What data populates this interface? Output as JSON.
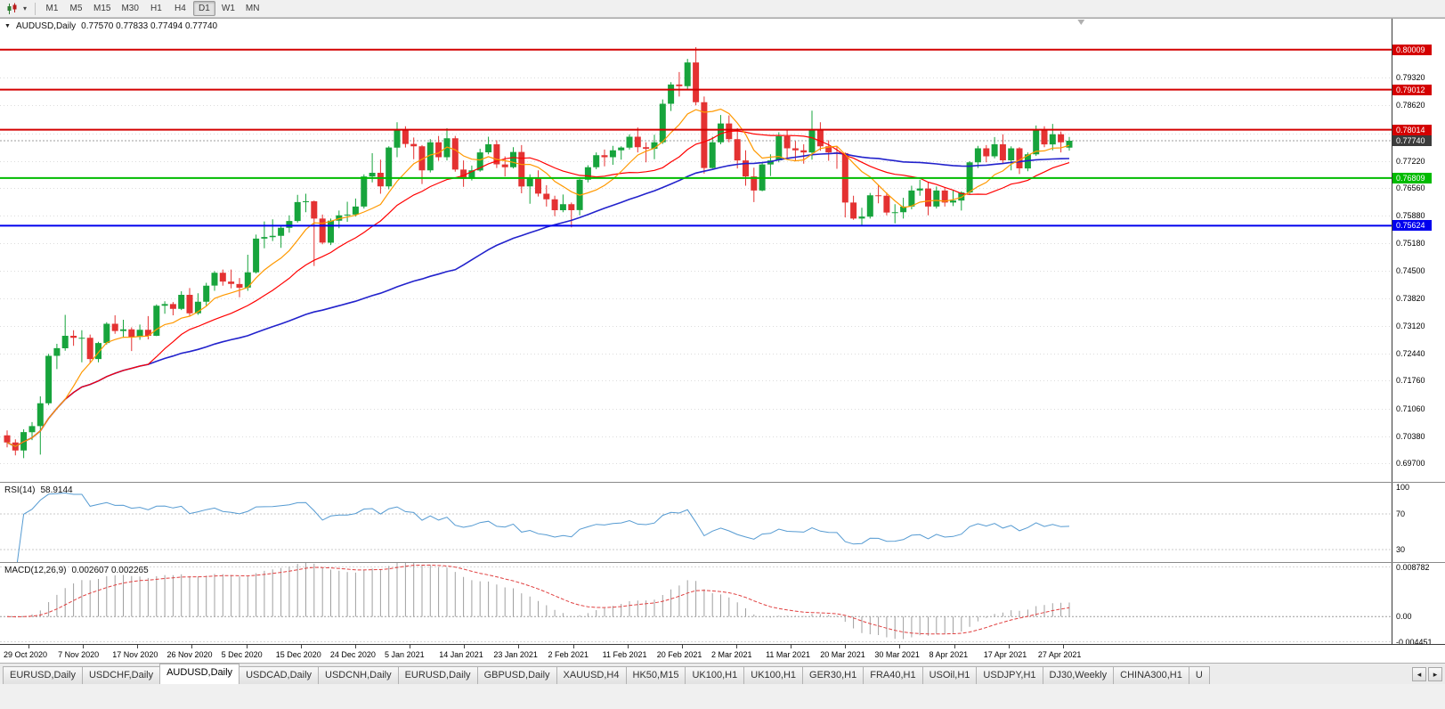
{
  "toolbar": {
    "dropdown_glyph": "▾",
    "timeframes": [
      "M1",
      "M5",
      "M15",
      "M30",
      "H1",
      "H4",
      "D1",
      "W1",
      "MN"
    ],
    "active_timeframe": "D1"
  },
  "chart": {
    "collapse_glyph": "▼",
    "title": "AUDUSD,Daily",
    "ohlc": "0.77570 0.77833 0.77494 0.77740"
  },
  "rsi_panel": {
    "label": "RSI(14)",
    "value": "58.9144"
  },
  "macd_panel": {
    "label": "MACD(12,26,9)",
    "values": "0.002607 0.002265"
  },
  "tabs": {
    "items": [
      "EURUSD,Daily",
      "USDCHF,Daily",
      "AUDUSD,Daily",
      "USDCAD,Daily",
      "USDCNH,Daily",
      "EURUSD,Daily",
      "GBPUSD,Daily",
      "XAUUSD,H4",
      "HK50,M15",
      "UK100,H1",
      "UK100,H1",
      "GER30,H1",
      "FRA40,H1",
      "USOil,H1",
      "USDJPY,H1",
      "DJ30,Weekly",
      "CHINA300,H1",
      "U"
    ],
    "active_index": 2,
    "scroll_left_icon": "◂",
    "scroll_right_icon": "▸"
  },
  "chart_data": {
    "type": "candlestick",
    "symbol": "AUDUSD",
    "period": "Daily",
    "current_ohlc": {
      "open": 0.7757,
      "high": 0.77833,
      "low": 0.77494,
      "close": 0.7774
    },
    "price_range": [
      0.6924,
      0.8078
    ],
    "y_labels": [
      "0.79320",
      "0.78620",
      "0.77920",
      "0.77220",
      "0.76560",
      "0.75880",
      "0.75180",
      "0.74500",
      "0.73820",
      "0.73120",
      "0.72440",
      "0.71760",
      "0.71060",
      "0.70380",
      "0.69700"
    ],
    "x_labels": [
      "29 Oct 2020",
      "7 Nov 2020",
      "17 Nov 2020",
      "26 Nov 2020",
      "5 Dec 2020",
      "15 Dec 2020",
      "24 Dec 2020",
      "5 Jan 2021",
      "14 Jan 2021",
      "23 Jan 2021",
      "2 Feb 2021",
      "11 Feb 2021",
      "20 Feb 2021",
      "2 Mar 2021",
      "11 Mar 2021",
      "20 Mar 2021",
      "30 Mar 2021",
      "8 Apr 2021",
      "17 Apr 2021",
      "27 Apr 2021"
    ],
    "colors": {
      "up": "#17A43C",
      "down": "#E43232"
    },
    "overlays": {
      "sma_fast": {
        "period": 8,
        "color": "#FF9900",
        "width": 1.2
      },
      "sma_mid": {
        "period": 18,
        "color": "#FF0000",
        "width": 1.2
      },
      "sma_slow": {
        "period": 55,
        "color": "#2222CC",
        "width": 1.6
      }
    },
    "hlines": [
      {
        "price": 0.80009,
        "color": "#D40000",
        "width": 2
      },
      {
        "price": 0.79012,
        "color": "#D40000",
        "width": 2
      },
      {
        "price": 0.78014,
        "color": "#D40000",
        "width": 2
      },
      {
        "price": 0.76809,
        "color": "#00BB00",
        "width": 2
      },
      {
        "price": 0.75624,
        "color": "#0000EE",
        "width": 2
      }
    ],
    "bid_line": 0.7774,
    "bid_tag_color": "#3C3C3C",
    "rsi": {
      "period": 14,
      "value": 58.9144,
      "color": "#569BD2",
      "range": [
        15,
        105
      ],
      "levels": [
        70,
        30
      ],
      "axis_labels": [
        "100",
        "70",
        "30"
      ]
    },
    "macd": {
      "fast": 12,
      "slow": 26,
      "signal": 9,
      "macd_value": 0.002607,
      "signal_value": 0.002265,
      "range": [
        -0.005,
        0.0095
      ],
      "axis_labels": [
        "0.008782",
        "0.00",
        "-0.004451"
      ],
      "hist_color": "#A0A0A0",
      "signal_color": "#E04040"
    },
    "candles": [
      [
        0.704,
        0.7052,
        0.701,
        0.7022
      ],
      [
        0.7022,
        0.703,
        0.699,
        0.7002
      ],
      [
        0.7002,
        0.7055,
        0.6983,
        0.7048
      ],
      [
        0.7048,
        0.7073,
        0.7028,
        0.7063
      ],
      [
        0.7063,
        0.7137,
        0.6992,
        0.712
      ],
      [
        0.712,
        0.7243,
        0.7115,
        0.7238
      ],
      [
        0.7238,
        0.7268,
        0.7205,
        0.7257
      ],
      [
        0.7257,
        0.734,
        0.7251,
        0.7288
      ],
      [
        0.7288,
        0.7302,
        0.7263,
        0.7283
      ],
      [
        0.7283,
        0.7302,
        0.7222,
        0.7283
      ],
      [
        0.7283,
        0.7291,
        0.7221,
        0.723
      ],
      [
        0.723,
        0.7273,
        0.7222,
        0.727
      ],
      [
        0.727,
        0.7322,
        0.7266,
        0.7318
      ],
      [
        0.7318,
        0.7339,
        0.7293,
        0.73
      ],
      [
        0.73,
        0.7328,
        0.7283,
        0.7304
      ],
      [
        0.7304,
        0.7309,
        0.725,
        0.7285
      ],
      [
        0.7285,
        0.7316,
        0.7278,
        0.7303
      ],
      [
        0.7303,
        0.7337,
        0.7279,
        0.7288
      ],
      [
        0.7288,
        0.7366,
        0.7287,
        0.7363
      ],
      [
        0.7363,
        0.7374,
        0.7343,
        0.7367
      ],
      [
        0.7367,
        0.7372,
        0.7339,
        0.7355
      ],
      [
        0.7355,
        0.7399,
        0.7352,
        0.739
      ],
      [
        0.739,
        0.7407,
        0.7338,
        0.7344
      ],
      [
        0.7344,
        0.7394,
        0.734,
        0.7373
      ],
      [
        0.7373,
        0.742,
        0.7363,
        0.7413
      ],
      [
        0.7413,
        0.7449,
        0.74,
        0.7445
      ],
      [
        0.7445,
        0.7453,
        0.7413,
        0.7423
      ],
      [
        0.7423,
        0.7453,
        0.7406,
        0.7417
      ],
      [
        0.7417,
        0.7432,
        0.7384,
        0.7408
      ],
      [
        0.7408,
        0.749,
        0.74,
        0.7446
      ],
      [
        0.7446,
        0.754,
        0.7443,
        0.753
      ],
      [
        0.753,
        0.7573,
        0.7506,
        0.7534
      ],
      [
        0.7534,
        0.7578,
        0.7524,
        0.7537
      ],
      [
        0.7537,
        0.7563,
        0.7507,
        0.7557
      ],
      [
        0.7557,
        0.7588,
        0.7545,
        0.7574
      ],
      [
        0.7574,
        0.7639,
        0.757,
        0.7621
      ],
      [
        0.7621,
        0.7642,
        0.7596,
        0.7623
      ],
      [
        0.7623,
        0.7625,
        0.7462,
        0.758
      ],
      [
        0.758,
        0.759,
        0.7516,
        0.752
      ],
      [
        0.752,
        0.758,
        0.7514,
        0.7575
      ],
      [
        0.7575,
        0.76,
        0.7556,
        0.7588
      ],
      [
        0.7588,
        0.7622,
        0.7572,
        0.759
      ],
      [
        0.759,
        0.763,
        0.7585,
        0.761
      ],
      [
        0.761,
        0.769,
        0.7605,
        0.7685
      ],
      [
        0.7685,
        0.7743,
        0.767,
        0.7694
      ],
      [
        0.7694,
        0.7727,
        0.7642,
        0.766
      ],
      [
        0.766,
        0.776,
        0.7653,
        0.7757
      ],
      [
        0.7757,
        0.782,
        0.7733,
        0.78
      ],
      [
        0.78,
        0.781,
        0.7757,
        0.7766
      ],
      [
        0.7766,
        0.7782,
        0.7728,
        0.776
      ],
      [
        0.776,
        0.7763,
        0.7666,
        0.77
      ],
      [
        0.77,
        0.7778,
        0.7695,
        0.777
      ],
      [
        0.777,
        0.7786,
        0.7724,
        0.7733
      ],
      [
        0.7733,
        0.7805,
        0.7725,
        0.778
      ],
      [
        0.778,
        0.7786,
        0.7697,
        0.7702
      ],
      [
        0.7702,
        0.7725,
        0.7659,
        0.7679
      ],
      [
        0.7679,
        0.7712,
        0.7675,
        0.77
      ],
      [
        0.77,
        0.7754,
        0.7697,
        0.7745
      ],
      [
        0.7745,
        0.7784,
        0.774,
        0.7765
      ],
      [
        0.7765,
        0.7775,
        0.7706,
        0.7715
      ],
      [
        0.7715,
        0.7735,
        0.7685,
        0.7708
      ],
      [
        0.7708,
        0.7758,
        0.7705,
        0.7746
      ],
      [
        0.7746,
        0.7763,
        0.7643,
        0.766
      ],
      [
        0.766,
        0.769,
        0.7617,
        0.768
      ],
      [
        0.768,
        0.77,
        0.7635,
        0.7642
      ],
      [
        0.7642,
        0.7663,
        0.761,
        0.7628
      ],
      [
        0.7628,
        0.7637,
        0.7586,
        0.7601
      ],
      [
        0.7601,
        0.764,
        0.7596,
        0.7616
      ],
      [
        0.7616,
        0.762,
        0.7558,
        0.7601
      ],
      [
        0.7601,
        0.7679,
        0.7588,
        0.7677
      ],
      [
        0.7677,
        0.7713,
        0.767,
        0.7708
      ],
      [
        0.7708,
        0.7745,
        0.7703,
        0.7738
      ],
      [
        0.7738,
        0.7752,
        0.771,
        0.7733
      ],
      [
        0.7733,
        0.7761,
        0.7714,
        0.775
      ],
      [
        0.775,
        0.776,
        0.7727,
        0.7757
      ],
      [
        0.7757,
        0.779,
        0.7752,
        0.7784
      ],
      [
        0.7784,
        0.7807,
        0.7745,
        0.7758
      ],
      [
        0.7758,
        0.777,
        0.772,
        0.7754
      ],
      [
        0.7754,
        0.7789,
        0.7728,
        0.777
      ],
      [
        0.777,
        0.7877,
        0.7766,
        0.7866
      ],
      [
        0.7866,
        0.792,
        0.7848,
        0.7914
      ],
      [
        0.7914,
        0.7945,
        0.7884,
        0.791
      ],
      [
        0.791,
        0.7978,
        0.79,
        0.7969
      ],
      [
        0.7969,
        0.8007,
        0.7862,
        0.787
      ],
      [
        0.787,
        0.7884,
        0.7692,
        0.7706
      ],
      [
        0.7706,
        0.7784,
        0.7705,
        0.777
      ],
      [
        0.777,
        0.7838,
        0.7765,
        0.7817
      ],
      [
        0.7817,
        0.7837,
        0.777,
        0.7778
      ],
      [
        0.7778,
        0.7805,
        0.7705,
        0.7725
      ],
      [
        0.7725,
        0.775,
        0.7662,
        0.7685
      ],
      [
        0.7685,
        0.7707,
        0.7621,
        0.765
      ],
      [
        0.765,
        0.772,
        0.7648,
        0.7715
      ],
      [
        0.7715,
        0.774,
        0.7686,
        0.7725
      ],
      [
        0.7725,
        0.7795,
        0.772,
        0.7785
      ],
      [
        0.7785,
        0.78,
        0.773,
        0.7755
      ],
      [
        0.7755,
        0.7773,
        0.7725,
        0.775
      ],
      [
        0.775,
        0.7765,
        0.7717,
        0.7745
      ],
      [
        0.7745,
        0.7849,
        0.7727,
        0.78
      ],
      [
        0.78,
        0.782,
        0.7749,
        0.776
      ],
      [
        0.776,
        0.7775,
        0.7724,
        0.7745
      ],
      [
        0.7745,
        0.776,
        0.7704,
        0.7743
      ],
      [
        0.7743,
        0.7745,
        0.7583,
        0.762
      ],
      [
        0.762,
        0.7637,
        0.7577,
        0.758
      ],
      [
        0.758,
        0.7607,
        0.7562,
        0.7585
      ],
      [
        0.7585,
        0.7644,
        0.758,
        0.7638
      ],
      [
        0.7638,
        0.7664,
        0.7618,
        0.7637
      ],
      [
        0.7637,
        0.7645,
        0.7588,
        0.7595
      ],
      [
        0.7595,
        0.7616,
        0.7568,
        0.7596
      ],
      [
        0.7596,
        0.7632,
        0.758,
        0.761
      ],
      [
        0.761,
        0.7662,
        0.7603,
        0.765
      ],
      [
        0.765,
        0.7677,
        0.7637,
        0.7655
      ],
      [
        0.7655,
        0.767,
        0.7588,
        0.761
      ],
      [
        0.761,
        0.766,
        0.7605,
        0.765
      ],
      [
        0.765,
        0.7656,
        0.761,
        0.762
      ],
      [
        0.762,
        0.765,
        0.7611,
        0.7625
      ],
      [
        0.7625,
        0.7648,
        0.76,
        0.7645
      ],
      [
        0.7645,
        0.7723,
        0.764,
        0.772
      ],
      [
        0.772,
        0.7761,
        0.7706,
        0.7755
      ],
      [
        0.7755,
        0.7763,
        0.772,
        0.7735
      ],
      [
        0.7735,
        0.7783,
        0.773,
        0.7765
      ],
      [
        0.7765,
        0.779,
        0.7717,
        0.7725
      ],
      [
        0.7725,
        0.776,
        0.77,
        0.7755
      ],
      [
        0.7755,
        0.7758,
        0.7691,
        0.7705
      ],
      [
        0.7705,
        0.7745,
        0.7698,
        0.774
      ],
      [
        0.774,
        0.7812,
        0.7736,
        0.78
      ],
      [
        0.78,
        0.781,
        0.7758,
        0.7765
      ],
      [
        0.7765,
        0.7816,
        0.775,
        0.779
      ],
      [
        0.779,
        0.7797,
        0.7745,
        0.777
      ],
      [
        0.7757,
        0.77833,
        0.77494,
        0.7774
      ]
    ]
  }
}
